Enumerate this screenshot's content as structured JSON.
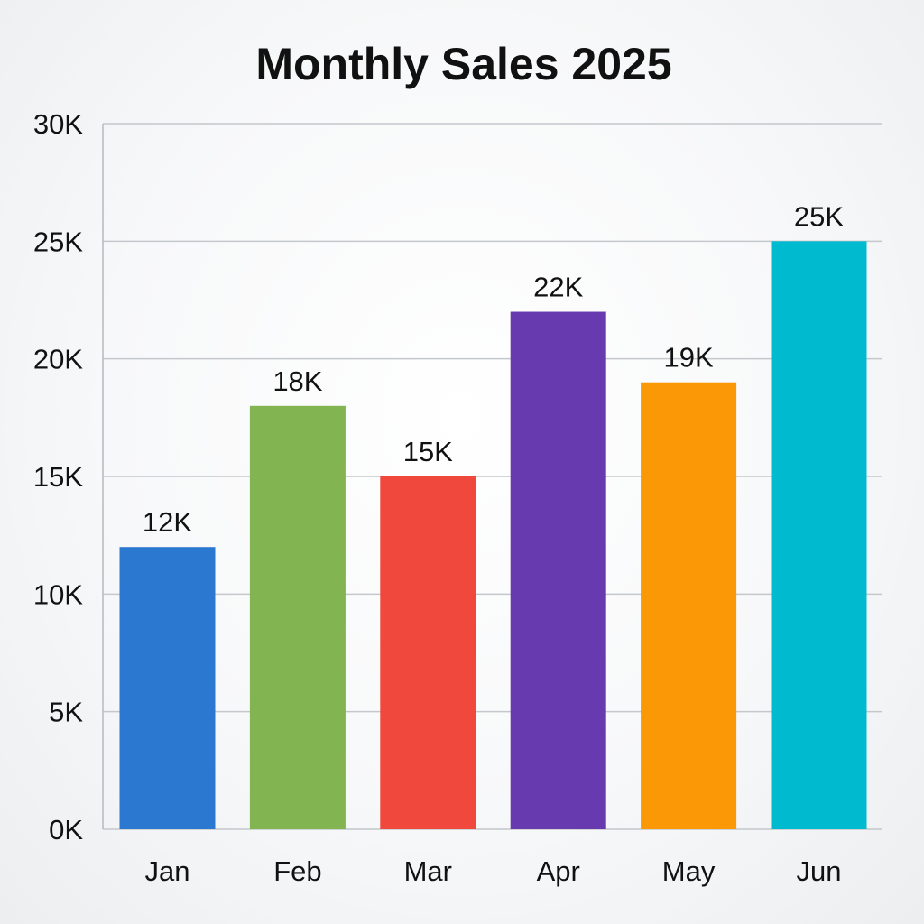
{
  "chart_data": {
    "type": "bar",
    "title": "Monthly Sales 2025",
    "xlabel": "",
    "ylabel": "",
    "categories": [
      "Jan",
      "Feb",
      "Mar",
      "Apr",
      "May",
      "Jun"
    ],
    "values": [
      12000,
      18000,
      15000,
      22000,
      19000,
      25000
    ],
    "data_labels": [
      "12K",
      "18K",
      "15K",
      "22K",
      "19K",
      "25K"
    ],
    "bar_colors": [
      "#2b78d0",
      "#82b451",
      "#f0483c",
      "#673ab0",
      "#fa9806",
      "#00bad0"
    ],
    "ylim": [
      0,
      30000
    ],
    "yticks": [
      0,
      5000,
      10000,
      15000,
      20000,
      25000,
      30000
    ],
    "ytick_labels": [
      "0K",
      "5K",
      "10K",
      "15K",
      "20K",
      "25K",
      "30K"
    ],
    "grid": true,
    "legend": "none"
  }
}
